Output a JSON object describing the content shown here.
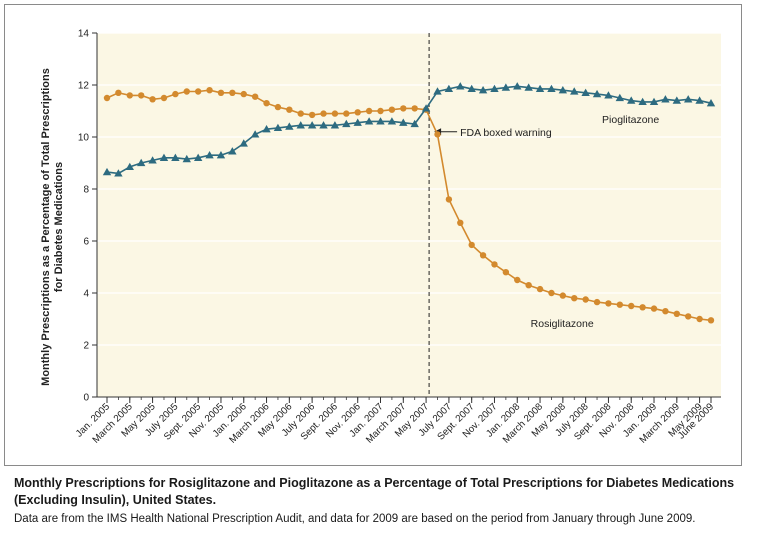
{
  "chart_data": {
    "type": "line",
    "title": "",
    "ylabel": "Monthly Prescriptions as a Percentage of Total Prescriptions for Diabetes Medications",
    "xlabel": "",
    "ylim": [
      0,
      14
    ],
    "yticks": [
      0,
      2,
      4,
      6,
      8,
      10,
      12,
      14
    ],
    "grid": "horizontal",
    "x_months": [
      "2005-01",
      "2005-02",
      "2005-03",
      "2005-04",
      "2005-05",
      "2005-06",
      "2005-07",
      "2005-08",
      "2005-09",
      "2005-10",
      "2005-11",
      "2005-12",
      "2006-01",
      "2006-02",
      "2006-03",
      "2006-04",
      "2006-05",
      "2006-06",
      "2006-07",
      "2006-08",
      "2006-09",
      "2006-10",
      "2006-11",
      "2006-12",
      "2007-01",
      "2007-02",
      "2007-03",
      "2007-04",
      "2007-05",
      "2007-06",
      "2007-07",
      "2007-08",
      "2007-09",
      "2007-10",
      "2007-11",
      "2007-12",
      "2008-01",
      "2008-02",
      "2008-03",
      "2008-04",
      "2008-05",
      "2008-06",
      "2008-07",
      "2008-08",
      "2008-09",
      "2008-10",
      "2008-11",
      "2008-12",
      "2009-01",
      "2009-02",
      "2009-03",
      "2009-04",
      "2009-05",
      "2009-06"
    ],
    "x_tick_labels": [
      "Jan. 2005",
      "March 2005",
      "May 2005",
      "July 2005",
      "Sept. 2005",
      "Nov. 2005",
      "Jan. 2006",
      "March 2006",
      "May 2006",
      "July 2006",
      "Sept. 2006",
      "Nov. 2006",
      "Jan. 2007",
      "March 2007",
      "May 2007",
      "July 2007",
      "Sept. 2007",
      "Nov. 2007",
      "Jan. 2008",
      "March 2008",
      "May 2008",
      "July 2008",
      "Sept. 2008",
      "Nov. 2008",
      "Jan. 2009",
      "March 2009",
      "May 2009",
      "June 2009"
    ],
    "x_tick_months": [
      "2005-01",
      "2005-03",
      "2005-05",
      "2005-07",
      "2005-09",
      "2005-11",
      "2006-01",
      "2006-03",
      "2006-05",
      "2006-07",
      "2006-09",
      "2006-11",
      "2007-01",
      "2007-03",
      "2007-05",
      "2007-07",
      "2007-09",
      "2007-11",
      "2008-01",
      "2008-03",
      "2008-05",
      "2008-07",
      "2008-09",
      "2008-11",
      "2009-01",
      "2009-03",
      "2009-05",
      "2009-06"
    ],
    "series": [
      {
        "name": "Rosiglitazone",
        "color": "#d38a2e",
        "marker": "circle",
        "values": [
          11.5,
          11.7,
          11.6,
          11.6,
          11.45,
          11.5,
          11.65,
          11.75,
          11.75,
          11.8,
          11.7,
          11.7,
          11.65,
          11.55,
          11.3,
          11.15,
          11.05,
          10.9,
          10.85,
          10.9,
          10.9,
          10.9,
          10.95,
          11.0,
          11.0,
          11.05,
          11.1,
          11.1,
          11.05,
          10.1,
          7.6,
          6.7,
          5.85,
          5.45,
          5.1,
          4.8,
          4.5,
          4.3,
          4.15,
          4.0,
          3.9,
          3.8,
          3.75,
          3.65,
          3.6,
          3.55,
          3.5,
          3.45,
          3.4,
          3.3,
          3.2,
          3.1,
          3.0,
          2.95
        ]
      },
      {
        "name": "Pioglitazone",
        "color": "#2d6b80",
        "marker": "triangle",
        "values": [
          8.65,
          8.6,
          8.85,
          9.0,
          9.1,
          9.2,
          9.2,
          9.15,
          9.2,
          9.3,
          9.3,
          9.45,
          9.75,
          10.1,
          10.3,
          10.35,
          10.4,
          10.45,
          10.45,
          10.45,
          10.45,
          10.5,
          10.55,
          10.6,
          10.6,
          10.6,
          10.55,
          10.5,
          11.1,
          11.75,
          11.85,
          11.95,
          11.85,
          11.8,
          11.85,
          11.9,
          11.95,
          11.9,
          11.85,
          11.85,
          11.8,
          11.75,
          11.7,
          11.65,
          11.6,
          11.5,
          11.4,
          11.35,
          11.35,
          11.45,
          11.4,
          11.45,
          11.4,
          11.3
        ]
      }
    ],
    "annotations": [
      {
        "text": "FDA boxed warning",
        "x_month": "2007-05",
        "y": 10.2,
        "type": "vertical-dashed-line-with-arrow"
      },
      {
        "text": "Pioglitazone",
        "series": "Pioglitazone"
      },
      {
        "text": "Rosiglitazone",
        "series": "Rosiglitazone"
      }
    ]
  },
  "caption": {
    "title": "Monthly Prescriptions for Rosiglitazone and Pioglitazone as a Percentage of Total Prescriptions for Diabetes Medications (Excluding Insulin), United States.",
    "note": "Data are from the IMS Health National Prescription Audit, and data for 2009 are based on the period from January through June 2009."
  }
}
